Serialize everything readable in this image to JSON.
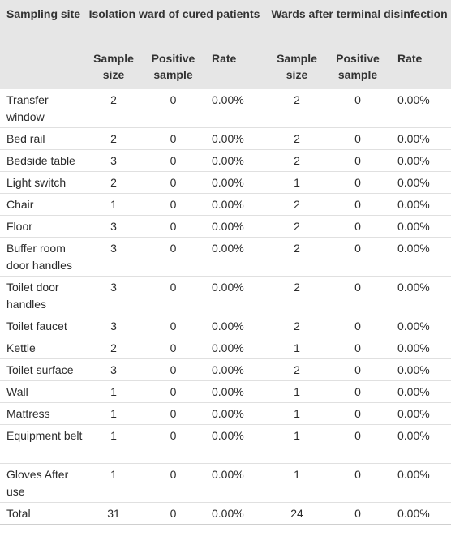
{
  "header": {
    "site": "Sampling site",
    "group1": "Isolation ward of cured patients",
    "group2": "Wards after terminal disinfection",
    "sample_size": "Sample size",
    "positive_sample": "Positive sample",
    "rate": "Rate"
  },
  "rows": [
    {
      "site": "Transfer window",
      "n1": "2",
      "p1": "0",
      "r1": "0.00%",
      "n2": "2",
      "p2": "0",
      "r2": "0.00%"
    },
    {
      "site": "Bed rail",
      "n1": "2",
      "p1": "0",
      "r1": "0.00%",
      "n2": "2",
      "p2": "0",
      "r2": "0.00%"
    },
    {
      "site": "Bedside table",
      "n1": "3",
      "p1": "0",
      "r1": "0.00%",
      "n2": "2",
      "p2": "0",
      "r2": "0.00%"
    },
    {
      "site": "Light switch",
      "n1": "2",
      "p1": "0",
      "r1": "0.00%",
      "n2": "1",
      "p2": "0",
      "r2": "0.00%"
    },
    {
      "site": "Chair",
      "n1": "1",
      "p1": "0",
      "r1": "0.00%",
      "n2": "2",
      "p2": "0",
      "r2": "0.00%"
    },
    {
      "site": "Floor",
      "n1": "3",
      "p1": "0",
      "r1": "0.00%",
      "n2": "2",
      "p2": "0",
      "r2": "0.00%"
    },
    {
      "site": "Buffer room door handles",
      "n1": "3",
      "p1": "0",
      "r1": "0.00%",
      "n2": "2",
      "p2": "0",
      "r2": "0.00%"
    },
    {
      "site": "Toilet door handles",
      "n1": "3",
      "p1": "0",
      "r1": "0.00%",
      "n2": "2",
      "p2": "0",
      "r2": "0.00%"
    },
    {
      "site": "Toilet faucet",
      "n1": "3",
      "p1": "0",
      "r1": "0.00%",
      "n2": "2",
      "p2": "0",
      "r2": "0.00%"
    },
    {
      "site": "Kettle",
      "n1": "2",
      "p1": "0",
      "r1": "0.00%",
      "n2": "1",
      "p2": "0",
      "r2": "0.00%"
    },
    {
      "site": "Toilet surface",
      "n1": "3",
      "p1": "0",
      "r1": "0.00%",
      "n2": "2",
      "p2": "0",
      "r2": "0.00%"
    },
    {
      "site": "Wall",
      "n1": "1",
      "p1": "0",
      "r1": "0.00%",
      "n2": "1",
      "p2": "0",
      "r2": "0.00%"
    },
    {
      "site": "Mattress",
      "n1": "1",
      "p1": "0",
      "r1": "0.00%",
      "n2": "1",
      "p2": "0",
      "r2": "0.00%"
    },
    {
      "site": "Equipment belt",
      "n1": "1",
      "p1": "0",
      "r1": "0.00%",
      "n2": "1",
      "p2": "0",
      "r2": "0.00%"
    },
    {
      "site": "Gloves After use",
      "n1": "1",
      "p1": "0",
      "r1": "0.00%",
      "n2": "1",
      "p2": "0",
      "r2": "0.00%"
    },
    {
      "site": "Total",
      "n1": "31",
      "p1": "0",
      "r1": "0.00%",
      "n2": "24",
      "p2": "0",
      "r2": "0.00%"
    }
  ]
}
